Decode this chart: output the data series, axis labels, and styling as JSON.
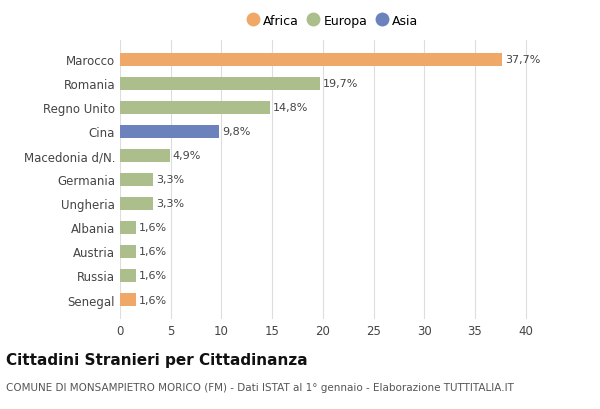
{
  "categories": [
    "Marocco",
    "Romania",
    "Regno Unito",
    "Cina",
    "Macedonia d/N.",
    "Germania",
    "Ungheria",
    "Albania",
    "Austria",
    "Russia",
    "Senegal"
  ],
  "values": [
    37.7,
    19.7,
    14.8,
    9.8,
    4.9,
    3.3,
    3.3,
    1.6,
    1.6,
    1.6,
    1.6
  ],
  "labels": [
    "37,7%",
    "19,7%",
    "14,8%",
    "9,8%",
    "4,9%",
    "3,3%",
    "3,3%",
    "1,6%",
    "1,6%",
    "1,6%",
    "1,6%"
  ],
  "continents": [
    "Africa",
    "Europa",
    "Europa",
    "Asia",
    "Europa",
    "Europa",
    "Europa",
    "Europa",
    "Europa",
    "Europa",
    "Africa"
  ],
  "colors": {
    "Africa": "#F0A868",
    "Europa": "#ABBE8B",
    "Asia": "#6B82BD"
  },
  "legend_order": [
    "Africa",
    "Europa",
    "Asia"
  ],
  "xlim": [
    0,
    42
  ],
  "xticks": [
    0,
    5,
    10,
    15,
    20,
    25,
    30,
    35,
    40
  ],
  "title": "Cittadini Stranieri per Cittadinanza",
  "subtitle": "COMUNE DI MONSAMPIETRO MORICO (FM) - Dati ISTAT al 1° gennaio - Elaborazione TUTTITALIA.IT",
  "background_color": "#ffffff",
  "grid_color": "#dddddd",
  "title_fontsize": 11,
  "subtitle_fontsize": 7.5,
  "label_fontsize": 8,
  "tick_fontsize": 8.5
}
